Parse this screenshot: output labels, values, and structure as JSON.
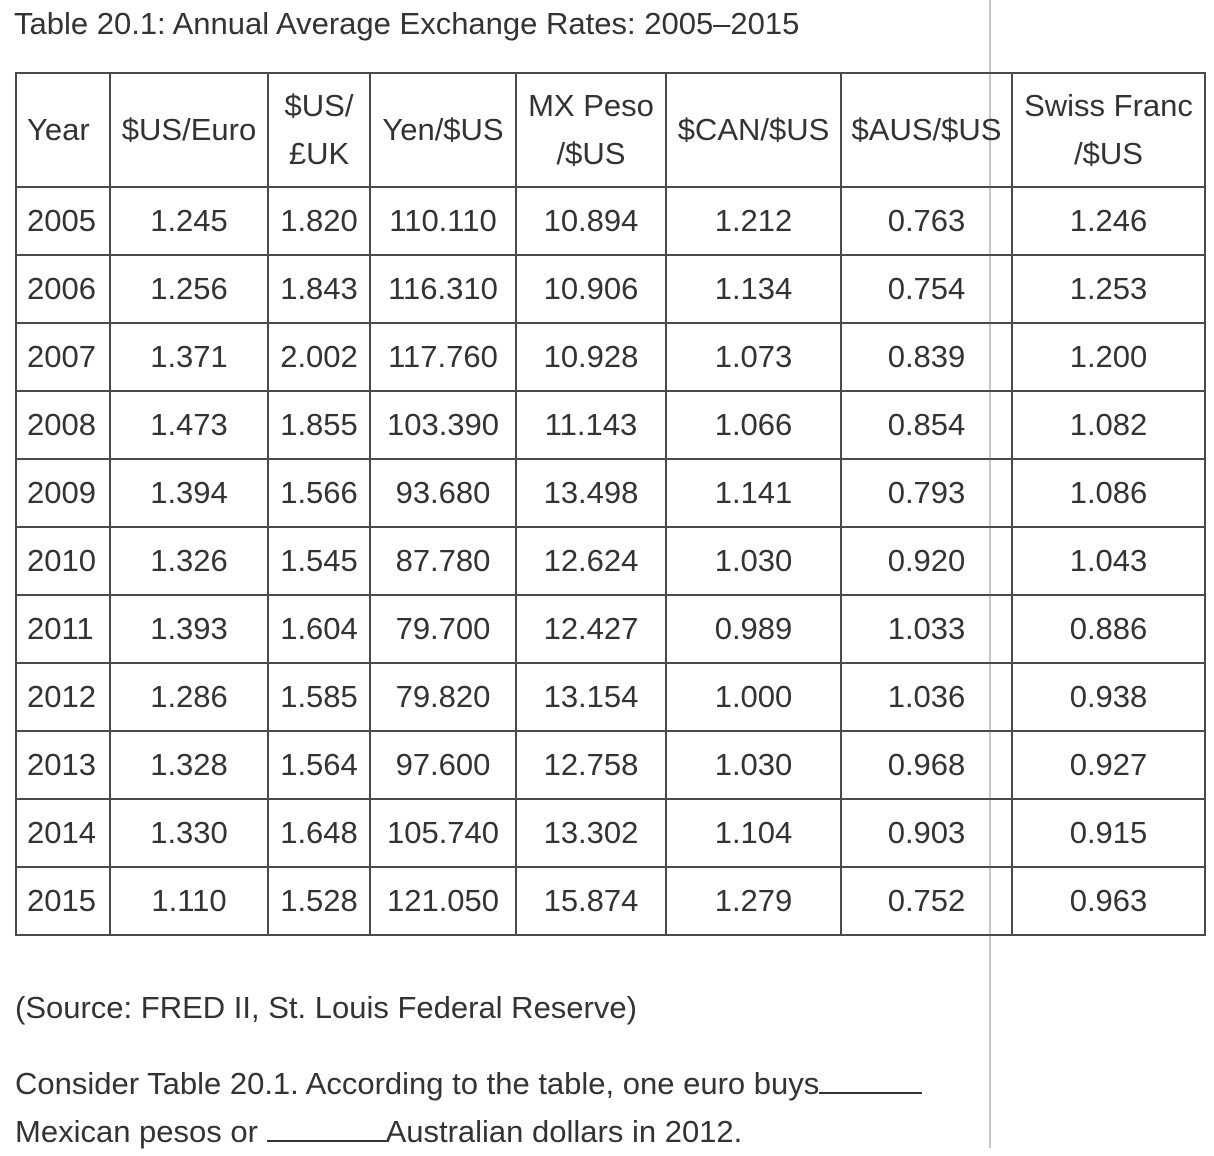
{
  "caption": "Table 20.1: Annual Average Exchange Rates: 2005–2015",
  "table": {
    "headers": [
      [
        "Year"
      ],
      [
        "$US/Euro"
      ],
      [
        "$US/",
        "£UK"
      ],
      [
        "Yen/$US"
      ],
      [
        "MX Peso",
        "/$US"
      ],
      [
        "$CAN/$US"
      ],
      [
        "$AUS/$US"
      ],
      [
        "Swiss Franc",
        "/$US"
      ]
    ],
    "rows": [
      [
        "2005",
        "1.245",
        "1.820",
        "110.110",
        "10.894",
        "1.212",
        "0.763",
        "1.246"
      ],
      [
        "2006",
        "1.256",
        "1.843",
        "116.310",
        "10.906",
        "1.134",
        "0.754",
        "1.253"
      ],
      [
        "2007",
        "1.371",
        "2.002",
        "117.760",
        "10.928",
        "1.073",
        "0.839",
        "1.200"
      ],
      [
        "2008",
        "1.473",
        "1.855",
        "103.390",
        "11.143",
        "1.066",
        "0.854",
        "1.082"
      ],
      [
        "2009",
        "1.394",
        "1.566",
        "93.680",
        "13.498",
        "1.141",
        "0.793",
        "1.086"
      ],
      [
        "2010",
        "1.326",
        "1.545",
        "87.780",
        "12.624",
        "1.030",
        "0.920",
        "1.043"
      ],
      [
        "2011",
        "1.393",
        "1.604",
        "79.700",
        "12.427",
        "0.989",
        "1.033",
        "0.886"
      ],
      [
        "2012",
        "1.286",
        "1.585",
        "79.820",
        "13.154",
        "1.000",
        "1.036",
        "0.938"
      ],
      [
        "2013",
        "1.328",
        "1.564",
        "97.600",
        "12.758",
        "1.030",
        "0.968",
        "0.927"
      ],
      [
        "2014",
        "1.330",
        "1.648",
        "105.740",
        "13.302",
        "1.104",
        "0.903",
        "0.915"
      ],
      [
        "2015",
        "1.110",
        "1.528",
        "121.050",
        "15.874",
        "1.279",
        "0.752",
        "0.963"
      ]
    ]
  },
  "source": "(Source: FRED II, St. Louis Federal Reserve)",
  "question": {
    "line1": "Consider Table 20.1. According to the table, one euro buys",
    "line2_start": "Mexican pesos or ",
    "line2_end": "Australian dollars in 2012."
  }
}
